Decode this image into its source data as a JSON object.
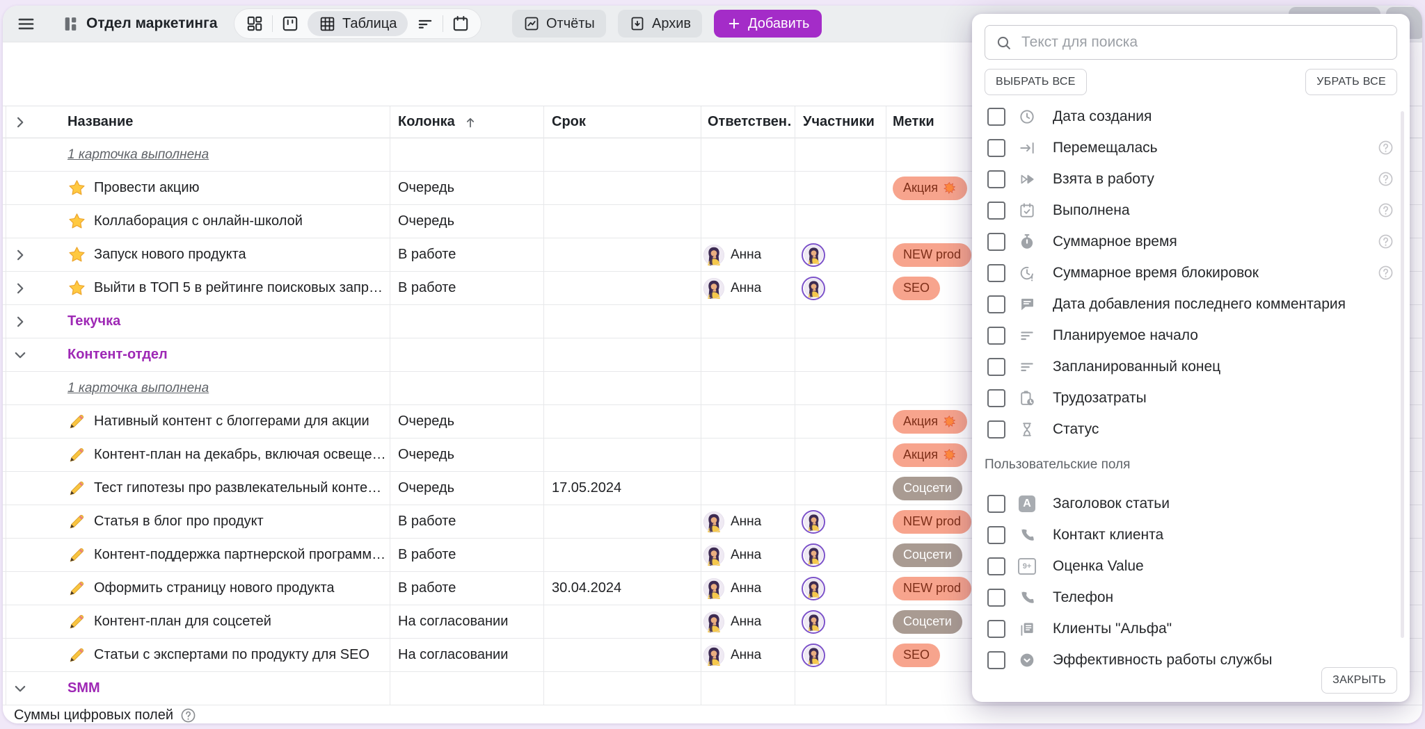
{
  "toolbar": {
    "title": "Отдел маркетинга",
    "views": {
      "table_label": "Таблица"
    },
    "reports_label": "Отчёты",
    "archive_label": "Архив",
    "add_label": "Добавить"
  },
  "table": {
    "columns": [
      "Название",
      "Колонка",
      "Срок",
      "Ответствен…",
      "Участники",
      "Метки"
    ],
    "sorted_column": "Колонка",
    "sort_direction": "asc",
    "rows": [
      {
        "type": "summary",
        "text": "1 карточка выполнена"
      },
      {
        "type": "task",
        "icon": "star",
        "name": "Провести акцию",
        "column": "Очередь",
        "label": {
          "text": "Акция 💥",
          "variant": "salmon"
        }
      },
      {
        "type": "task",
        "icon": "star",
        "name": "Коллаборация с онлайн-школой",
        "column": "Очередь"
      },
      {
        "type": "task",
        "chevron": true,
        "icon": "star",
        "name": "Запуск нового продукта",
        "column": "В работе",
        "assignee": "Анна",
        "participants": true,
        "label": {
          "text": "NEW prod",
          "variant": "salmon"
        }
      },
      {
        "type": "task",
        "chevron": true,
        "icon": "star",
        "name": "Выйти в ТОП 5 в рейтинге поисковых запр…",
        "column": "В работе",
        "assignee": "Анна",
        "participants": true,
        "label": {
          "text": "SEO",
          "variant": "salmon"
        }
      },
      {
        "type": "group",
        "name": "Текучка",
        "expanded": false
      },
      {
        "type": "group",
        "name": "Контент-отдел",
        "expanded": true
      },
      {
        "type": "summary",
        "text": "1 карточка выполнена"
      },
      {
        "type": "task",
        "icon": "pencil",
        "name": "Нативный контент с блоггерами для акции",
        "column": "Очередь",
        "label": {
          "text": "Акция 💥",
          "variant": "salmon"
        }
      },
      {
        "type": "task",
        "icon": "pencil",
        "name": "Контент-план на декабрь, включая освеще…",
        "column": "Очередь",
        "label": {
          "text": "Акция 💥",
          "variant": "salmon"
        }
      },
      {
        "type": "task",
        "icon": "pencil",
        "name": "Тест гипотезы про развлекательный конте…",
        "column": "Очередь",
        "due": "17.05.2024",
        "label": {
          "text": "Соцсети",
          "variant": "taupe"
        }
      },
      {
        "type": "task",
        "icon": "pencil",
        "name": "Статья в блог про продукт",
        "column": "В работе",
        "assignee": "Анна",
        "participants": true,
        "label": {
          "text": "NEW prod",
          "variant": "salmon"
        }
      },
      {
        "type": "task",
        "icon": "pencil",
        "name": "Контент-поддержка партнерской программ…",
        "column": "В работе",
        "assignee": "Анна",
        "participants": true,
        "label": {
          "text": "Соцсети",
          "variant": "taupe"
        }
      },
      {
        "type": "task",
        "icon": "pencil",
        "name": "Оформить страницу нового продукта",
        "column": "В работе",
        "due": "30.04.2024",
        "assignee": "Анна",
        "participants": true,
        "label": {
          "text": "NEW prod",
          "variant": "salmon"
        }
      },
      {
        "type": "task",
        "icon": "pencil",
        "name": "Контент-план для соцсетей",
        "column": "На согласовании",
        "assignee": "Анна",
        "participants": true,
        "label": {
          "text": "Соцсети",
          "variant": "taupe"
        }
      },
      {
        "type": "task",
        "icon": "pencil",
        "name": "Статьи с экспертами по продукту для SEO",
        "column": "На согласовании",
        "assignee": "Анна",
        "participants": true,
        "label": {
          "text": "SEO",
          "variant": "salmon"
        }
      },
      {
        "type": "group",
        "name": "SMM",
        "expanded": true
      }
    ]
  },
  "footer": {
    "sums_label": "Суммы цифровых полей"
  },
  "popup": {
    "search_placeholder": "Текст для поиска",
    "search_value": "",
    "select_all_label": "ВЫБРАТЬ ВСЕ",
    "clear_all_label": "УБРАТЬ ВСЕ",
    "close_label": "ЗАКРЫТЬ",
    "custom_section_label": "Пользовательские поля",
    "fields": [
      {
        "icon": "clock",
        "label": "Дата создания",
        "help": false,
        "checked": false
      },
      {
        "icon": "arrowbar",
        "label": "Перемещалась",
        "help": true,
        "checked": false
      },
      {
        "icon": "dplay",
        "label": "Взята в работу",
        "help": true,
        "checked": false
      },
      {
        "icon": "calcheck",
        "label": "Выполнена",
        "help": true,
        "checked": false
      },
      {
        "icon": "stopwatch",
        "label": "Суммарное время",
        "help": true,
        "checked": false
      },
      {
        "icon": "clockalert",
        "label": "Суммарное время блокировок",
        "help": true,
        "checked": false
      },
      {
        "icon": "comment",
        "label": "Дата добавления последнего комментария",
        "help": false,
        "checked": false
      },
      {
        "icon": "lines",
        "label": "Планируемое начало",
        "help": false,
        "checked": false
      },
      {
        "icon": "lines",
        "label": "Запланированный конец",
        "help": false,
        "checked": false
      },
      {
        "icon": "clipclock",
        "label": "Трудозатраты",
        "help": false,
        "checked": false
      },
      {
        "icon": "hourglass",
        "label": "Статус",
        "help": false,
        "checked": false
      }
    ],
    "custom_fields": [
      {
        "icon": "letter-a",
        "label": "Заголовок статьи",
        "checked": false
      },
      {
        "icon": "phone",
        "label": "Контакт клиента",
        "checked": false
      },
      {
        "icon": "number",
        "label": "Оценка Value",
        "checked": false
      },
      {
        "icon": "phone",
        "label": "Телефон",
        "checked": false
      },
      {
        "icon": "docs",
        "label": "Клиенты \"Альфа\"",
        "checked": false
      },
      {
        "icon": "selcircle",
        "label": "Эффективность работы службы",
        "checked": false
      }
    ]
  },
  "colors": {
    "accent": "#A42CC8",
    "group": "#9E28B5",
    "label_salmon_bg": "#F7A48D",
    "label_salmon_text": "#7D2E18",
    "label_taupe_bg": "#A99B92",
    "label_taupe_text": "#FFFFFF"
  }
}
